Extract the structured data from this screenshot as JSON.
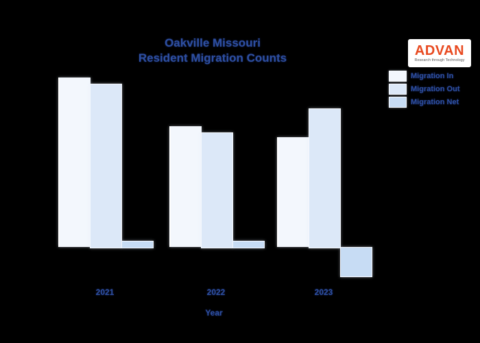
{
  "page": {
    "background_color": "#000000",
    "text_color": "#2d4fa1"
  },
  "header": {
    "title_line1": "Oakville Missouri",
    "title_line2": "Resident Migration Counts"
  },
  "logo": {
    "name": "ADVAN",
    "tagline": "Research through Technology",
    "name_color": "#e8491f"
  },
  "chart_data": {
    "type": "bar",
    "title": "Oakville Missouri Resident Migration Counts",
    "categories": [
      "2021",
      "2022",
      "2023"
    ],
    "series": [
      {
        "name": "Migration In",
        "color": "#f3f7fd",
        "values": [
          247,
          176,
          160
        ]
      },
      {
        "name": "Migration Out",
        "color": "#dce8f8",
        "values": [
          238,
          167,
          202
        ]
      },
      {
        "name": "Migration Net",
        "color": "#c7dcf4",
        "values": [
          9,
          9,
          -42
        ]
      }
    ],
    "xlabel": "Year",
    "ylabel": "",
    "units": "relative height (y-axis not labeled in image)",
    "grid": false,
    "legend_position": "upper right",
    "baseline": 0
  }
}
